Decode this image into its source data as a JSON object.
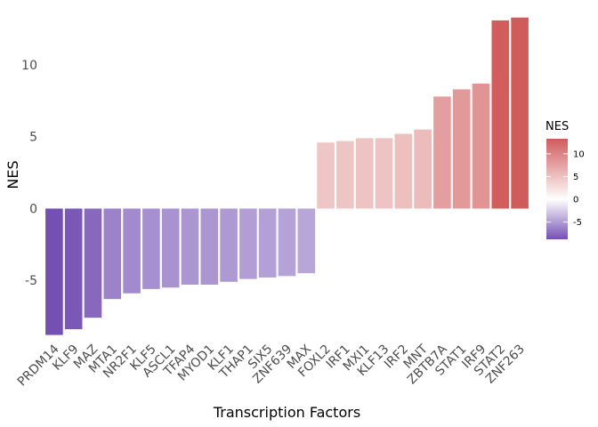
{
  "chart_data": {
    "type": "bar",
    "xlabel": "Transcription Factors",
    "ylabel": "NES",
    "ylim": [
      -9.2,
      13.9
    ],
    "y_ticks": [
      -5,
      0,
      5,
      10
    ],
    "grid": false,
    "categories": [
      "PRDM14",
      "KLF9",
      "MAZ",
      "MTA1",
      "NR2F1",
      "KLF5",
      "ASCL1",
      "TFAP4",
      "MYOD1",
      "KLF1",
      "THAP1",
      "SIX5",
      "ZNF639",
      "MAX",
      "FOXL2",
      "IRF1",
      "MXI1",
      "KLF13",
      "IRF2",
      "MNT",
      "ZBTB7A",
      "STAT1",
      "IRF9",
      "STAT2",
      "ZNF263"
    ],
    "values": [
      -8.8,
      -8.4,
      -7.6,
      -6.3,
      -5.9,
      -5.6,
      -5.5,
      -5.3,
      -5.3,
      -5.1,
      -4.9,
      -4.8,
      -4.7,
      -4.5,
      4.6,
      4.7,
      4.9,
      4.9,
      5.2,
      5.5,
      7.8,
      8.3,
      8.7,
      13.1,
      13.3
    ],
    "legend": {
      "title": "NES",
      "position": "right",
      "ticks": [
        10,
        5,
        0,
        -5
      ],
      "labels": [
        "10",
        "5",
        "0",
        "-5"
      ],
      "range": [
        -8.8,
        13.3
      ]
    },
    "colors": {
      "low": "#7450b3",
      "mid": "#ffffff",
      "high": "#d05b5b"
    }
  }
}
